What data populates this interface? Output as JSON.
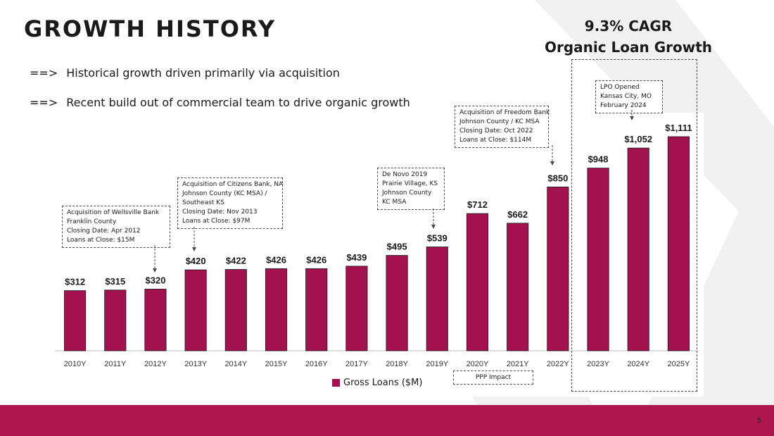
{
  "slide": {
    "title": "GROWTH HISTORY",
    "cagr_line1": "9.3% CAGR",
    "cagr_line2": "Organic Loan Growth",
    "bullets": [
      {
        "arrow": "==>",
        "text": "Historical growth driven primarily via acquisition"
      },
      {
        "arrow": "==>",
        "text": "Recent build out of commercial team to drive organic growth"
      }
    ],
    "page_number": "5",
    "ppp_label": "PPP Impact",
    "annotations": {
      "wellsville": [
        "Acquisition of Wellsville Bank",
        "Franklin County",
        "Closing Date: Apr 2012",
        "Loans at Close:  $15M"
      ],
      "citizens": [
        "Acquisition of Citizens Bank, NA",
        "Johnson County (KC MSA) /",
        "Southeast KS",
        "Closing Date: Nov 2013",
        "Loans at Close:  $97M"
      ],
      "denovo": [
        "De Novo 2019",
        "Prairie Village, KS",
        "Johnson County",
        "KC MSA"
      ],
      "freedom": [
        "Acquisition of Freedom Bank",
        "Johnson County / KC MSA",
        "Closing Date: Oct 2022",
        "Loans at Close:  $114M"
      ],
      "lpo": [
        "LPO Opened",
        "Kansas City, MO",
        "February 2024"
      ]
    }
  },
  "colors": {
    "bar": "#a3114f",
    "accent": "#b0174f",
    "axis": "#bfbfbf"
  },
  "chart_data": {
    "type": "bar",
    "title": "",
    "xlabel": "",
    "ylabel": "",
    "categories": [
      "2010Y",
      "2011Y",
      "2012Y",
      "2013Y",
      "2014Y",
      "2015Y",
      "2016Y",
      "2017Y",
      "2018Y",
      "2019Y",
      "2020Y",
      "2021Y",
      "2022Y",
      "2023Y",
      "2024Y",
      "2025Y"
    ],
    "series": [
      {
        "name": "Gross Loans ($M)",
        "values": [
          312,
          315,
          320,
          420,
          422,
          426,
          426,
          439,
          495,
          539,
          712,
          662,
          850,
          948,
          1052,
          1111
        ],
        "labels": [
          "$312",
          "$315",
          "$320",
          "$420",
          "$422",
          "$426",
          "$426",
          "$439",
          "$495",
          "$539",
          "$712",
          "$662",
          "$850",
          "$948",
          "$1,052",
          "$1,111"
        ]
      }
    ],
    "ylim": [
      0,
      1111
    ],
    "grid": false,
    "legend": "bottom-center"
  }
}
